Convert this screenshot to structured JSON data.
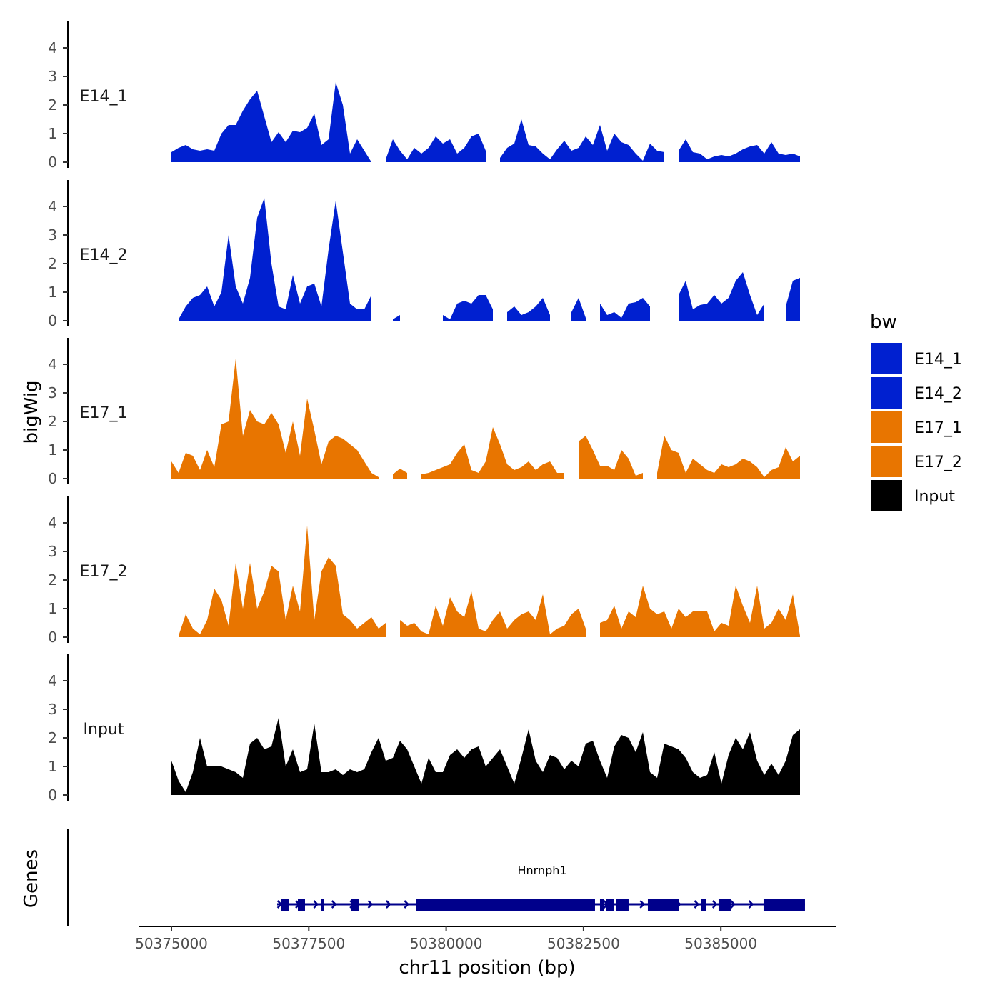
{
  "chart_data": {
    "type": "area",
    "xlabel": "chr11 position (bp)",
    "ylabel": "bigWig",
    "gene_panel_label": "Genes",
    "xlim": [
      50374400,
      50387500
    ],
    "x_ticks": [
      50375000,
      50377500,
      50380000,
      50382500,
      50385000
    ],
    "x_tick_labels": [
      "50375000",
      "50377500",
      "50380000",
      "50382500",
      "50385000"
    ],
    "ylim": [
      0,
      4.9
    ],
    "y_ticks": [
      0,
      1,
      2,
      3,
      4
    ],
    "y_tick_labels": [
      "0",
      "1",
      "2",
      "3",
      "4"
    ],
    "x_start": 50375000,
    "x_step": 130,
    "legend": {
      "title": "bw",
      "position": "right"
    },
    "series": [
      {
        "name": "E14_1",
        "color": "#0020D0",
        "values": [
          0.35,
          0.5,
          0.6,
          0.45,
          0.4,
          0.45,
          0.4,
          1.0,
          1.3,
          1.3,
          1.8,
          2.2,
          2.5,
          1.6,
          0.7,
          1.05,
          0.7,
          1.1,
          1.05,
          1.2,
          1.7,
          0.6,
          0.8,
          2.8,
          2.0,
          0.3,
          0.8,
          0.4,
          0.0,
          null,
          0.1,
          0.8,
          0.4,
          0.1,
          0.5,
          0.3,
          0.5,
          0.9,
          0.65,
          0.8,
          0.3,
          0.5,
          0.9,
          1.0,
          0.4,
          null,
          0.15,
          0.5,
          0.65,
          1.5,
          0.6,
          0.55,
          0.3,
          0.1,
          0.45,
          0.75,
          0.4,
          0.5,
          0.9,
          0.6,
          1.3,
          0.4,
          1.0,
          0.7,
          0.6,
          0.3,
          0.05,
          0.65,
          0.4,
          0.35,
          null,
          0.4,
          0.8,
          0.35,
          0.3,
          0.1,
          0.2,
          0.25,
          0.2,
          0.3,
          0.45,
          0.55,
          0.6,
          0.3,
          0.7,
          0.3,
          0.25,
          0.3,
          0.2
        ]
      },
      {
        "name": "E14_2",
        "color": "#0020D0",
        "values": [
          null,
          0.05,
          0.5,
          0.8,
          0.9,
          1.2,
          0.5,
          1.0,
          3.0,
          1.2,
          0.6,
          1.5,
          3.6,
          4.3,
          2.0,
          0.5,
          0.4,
          1.6,
          0.6,
          1.2,
          1.3,
          0.5,
          2.5,
          4.2,
          2.4,
          0.6,
          0.4,
          0.4,
          0.9,
          null,
          null,
          0.05,
          0.2,
          null,
          null,
          null,
          null,
          null,
          0.2,
          0.05,
          0.6,
          0.7,
          0.6,
          0.9,
          0.9,
          0.4,
          null,
          0.3,
          0.5,
          0.2,
          0.3,
          0.5,
          0.8,
          0.2,
          null,
          null,
          0.3,
          0.8,
          0.1,
          null,
          0.6,
          0.2,
          0.3,
          0.1,
          0.6,
          0.65,
          0.8,
          0.5,
          null,
          null,
          null,
          0.9,
          1.4,
          0.4,
          0.55,
          0.6,
          0.9,
          0.6,
          0.8,
          1.4,
          1.7,
          0.9,
          0.2,
          0.6,
          null,
          null,
          0.5,
          1.4,
          1.5
        ]
      },
      {
        "name": "E17_1",
        "color": "#E87500",
        "values": [
          0.6,
          0.2,
          0.9,
          0.8,
          0.3,
          1.0,
          0.4,
          1.9,
          2.0,
          4.2,
          1.5,
          2.4,
          2.0,
          1.9,
          2.3,
          1.9,
          0.9,
          2.0,
          0.8,
          2.8,
          1.7,
          0.5,
          1.3,
          1.5,
          1.4,
          1.2,
          1.0,
          0.6,
          0.2,
          0.05,
          null,
          0.15,
          0.35,
          0.2,
          null,
          0.15,
          0.2,
          0.3,
          0.4,
          0.5,
          0.9,
          1.2,
          0.3,
          0.2,
          0.6,
          1.8,
          1.2,
          0.5,
          0.3,
          0.4,
          0.6,
          0.3,
          0.5,
          0.6,
          0.2,
          0.2,
          null,
          1.3,
          1.5,
          1.0,
          0.45,
          0.45,
          0.3,
          1.0,
          0.7,
          0.1,
          0.2,
          null,
          0.2,
          1.5,
          1.0,
          0.9,
          0.2,
          0.7,
          0.5,
          0.3,
          0.2,
          0.5,
          0.4,
          0.5,
          0.7,
          0.6,
          0.4,
          0.05,
          0.3,
          0.4,
          1.1,
          0.6,
          0.8
        ]
      },
      {
        "name": "E17_2",
        "color": "#E87500",
        "values": [
          null,
          0.05,
          0.8,
          0.3,
          0.1,
          0.6,
          1.7,
          1.3,
          0.4,
          2.6,
          1.0,
          2.6,
          1.0,
          1.6,
          2.5,
          2.3,
          0.6,
          1.8,
          0.9,
          3.9,
          0.6,
          2.3,
          2.8,
          2.5,
          0.8,
          0.6,
          0.3,
          0.5,
          0.7,
          0.3,
          0.5,
          null,
          0.6,
          0.4,
          0.5,
          0.2,
          0.1,
          1.1,
          0.4,
          1.4,
          0.9,
          0.7,
          1.6,
          0.3,
          0.2,
          0.6,
          0.9,
          0.3,
          0.6,
          0.8,
          0.9,
          0.6,
          1.5,
          0.1,
          0.3,
          0.4,
          0.8,
          1.0,
          0.3,
          null,
          0.5,
          0.6,
          1.1,
          0.3,
          0.9,
          0.7,
          1.8,
          1.0,
          0.8,
          0.9,
          0.3,
          1.0,
          0.7,
          0.9,
          0.9,
          0.9,
          0.2,
          0.5,
          0.4,
          1.8,
          1.1,
          0.5,
          1.8,
          0.3,
          0.5,
          1.0,
          0.6,
          1.5,
          0.05
        ]
      },
      {
        "name": "Input",
        "color": "#000000",
        "values": [
          1.2,
          0.5,
          0.1,
          0.8,
          2.0,
          1.0,
          1.0,
          1.0,
          0.9,
          0.8,
          0.6,
          1.8,
          2.0,
          1.6,
          1.7,
          2.7,
          1.0,
          1.6,
          0.8,
          0.9,
          2.5,
          0.8,
          0.8,
          0.9,
          0.7,
          0.9,
          0.8,
          0.9,
          1.5,
          2.0,
          1.2,
          1.3,
          1.9,
          1.6,
          1.0,
          0.4,
          1.3,
          0.8,
          0.8,
          1.4,
          1.6,
          1.3,
          1.6,
          1.7,
          1.0,
          1.3,
          1.6,
          1.0,
          0.4,
          1.3,
          2.3,
          1.2,
          0.8,
          1.4,
          1.3,
          0.9,
          1.2,
          1.0,
          1.8,
          1.9,
          1.2,
          0.6,
          1.7,
          2.1,
          2.0,
          1.5,
          2.2,
          0.8,
          0.6,
          1.8,
          1.7,
          1.6,
          1.3,
          0.8,
          0.6,
          0.7,
          1.5,
          0.4,
          1.4,
          2.0,
          1.6,
          2.2,
          1.2,
          0.7,
          1.1,
          0.7,
          1.2,
          2.1,
          2.3
        ]
      }
    ],
    "gene": {
      "name": "Hnrnph1",
      "color": "#00008B",
      "strand": "+",
      "start": 50376924,
      "end": 50386531,
      "exons": [
        [
          50376989,
          50377132
        ],
        [
          50377301,
          50377431
        ],
        [
          50377730,
          50377782
        ],
        [
          50378276,
          50378406
        ],
        [
          50379459,
          50382709
        ],
        [
          50382800,
          50382878
        ],
        [
          50382917,
          50383060
        ],
        [
          50383099,
          50383320
        ],
        [
          50383671,
          50384243
        ],
        [
          50384646,
          50384737
        ],
        [
          50384958,
          50385179
        ],
        [
          50385777,
          50386531
        ]
      ]
    }
  }
}
